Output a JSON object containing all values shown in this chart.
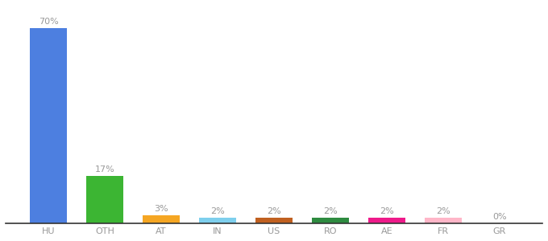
{
  "categories": [
    "HU",
    "OTH",
    "AT",
    "IN",
    "US",
    "RO",
    "AE",
    "FR",
    "GR"
  ],
  "values": [
    70,
    17,
    3,
    2,
    2,
    2,
    2,
    2,
    0
  ],
  "labels": [
    "70%",
    "17%",
    "3%",
    "2%",
    "2%",
    "2%",
    "2%",
    "2%",
    "0%"
  ],
  "bar_colors": [
    "#4d7fe0",
    "#3cb533",
    "#f5a623",
    "#7ecfed",
    "#c06020",
    "#2e8b40",
    "#ee1a8a",
    "#ffb6c8",
    "#cccccc"
  ],
  "background_color": "#ffffff",
  "label_fontsize": 8,
  "tick_fontsize": 8,
  "label_color": "#999999",
  "tick_color": "#999999",
  "spine_color": "#333333",
  "bar_width": 0.65,
  "ylim": [
    0,
    78
  ]
}
